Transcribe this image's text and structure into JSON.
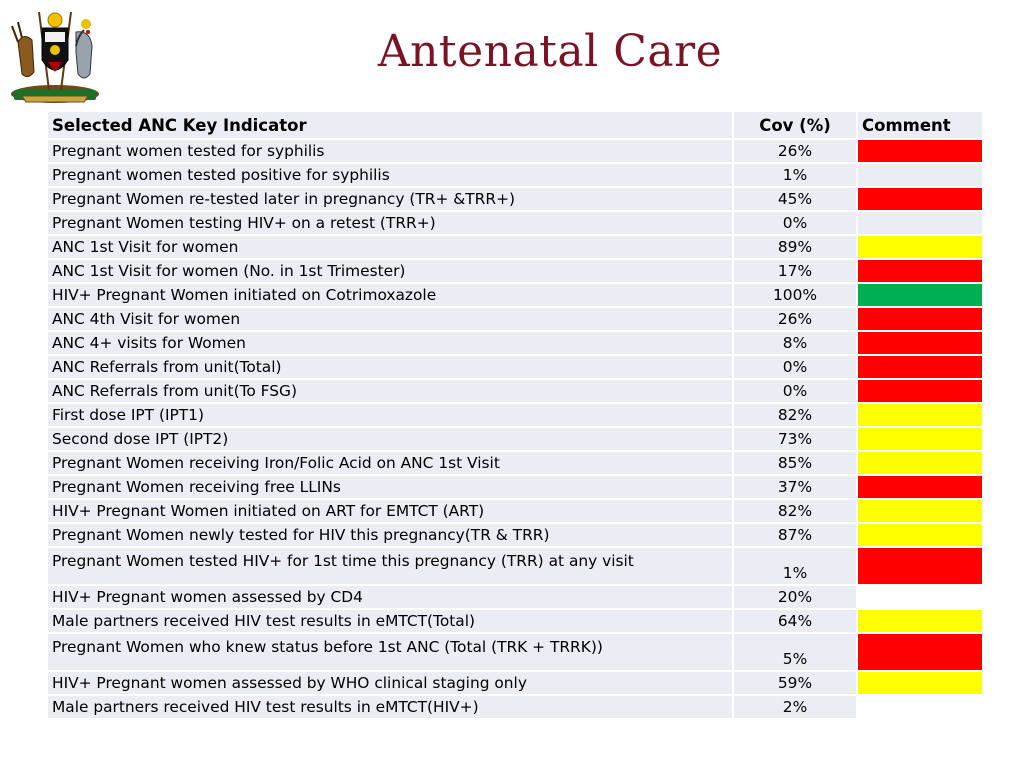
{
  "page": {
    "title": "Antenatal Care"
  },
  "colors": {
    "red": "#ff0000",
    "yellow": "#ffff00",
    "green": "#00b050",
    "none": "#eaedf4",
    "blank": "#ffffff"
  },
  "table": {
    "headers": {
      "indicator": "Selected ANC Key Indicator",
      "coverage": "Cov (%)",
      "comment": "Comment"
    },
    "rows": [
      {
        "indicator": "Pregnant women tested for syphilis",
        "coverage": "26%",
        "status": "red"
      },
      {
        "indicator": "Pregnant women tested positive for syphilis",
        "coverage": "1%",
        "status": "none"
      },
      {
        "indicator": "Pregnant Women re-tested later in pregnancy (TR+ &TRR+)",
        "coverage": "45%",
        "status": "red"
      },
      {
        "indicator": "Pregnant Women testing HIV+ on a retest (TRR+)",
        "coverage": "0%",
        "status": "none"
      },
      {
        "indicator": "ANC 1st Visit for women",
        "coverage": "89%",
        "status": "yellow"
      },
      {
        "indicator": "ANC 1st Visit for women (No. in 1st Trimester)",
        "coverage": "17%",
        "status": "red"
      },
      {
        "indicator": "HIV+ Pregnant Women initiated on Cotrimoxazole",
        "coverage": "100%",
        "status": "green"
      },
      {
        "indicator": "ANC 4th Visit for women",
        "coverage": "26%",
        "status": "red"
      },
      {
        "indicator": "ANC 4+ visits for Women",
        "coverage": "8%",
        "status": "red"
      },
      {
        "indicator": "ANC Referrals from unit(Total)",
        "coverage": "0%",
        "status": "red"
      },
      {
        "indicator": "ANC Referrals from unit(To FSG)",
        "coverage": "0%",
        "status": "red"
      },
      {
        "indicator": "First dose IPT (IPT1)",
        "coverage": "82%",
        "status": "yellow"
      },
      {
        "indicator": "Second dose IPT (IPT2)",
        "coverage": "73%",
        "status": "yellow"
      },
      {
        "indicator": "Pregnant Women receiving Iron/Folic Acid on ANC 1st Visit",
        "coverage": "85%",
        "status": "yellow"
      },
      {
        "indicator": "Pregnant Women receiving free LLINs",
        "coverage": "37%",
        "status": "red"
      },
      {
        "indicator": "HIV+ Pregnant Women initiated on ART for EMTCT (ART)",
        "coverage": "82%",
        "status": "yellow"
      },
      {
        "indicator": "Pregnant Women newly tested for HIV this pregnancy(TR & TRR)",
        "coverage": "87%",
        "status": "yellow"
      },
      {
        "indicator": "Pregnant Women tested HIV+ for 1st time this pregnancy (TRR) at any visit",
        "coverage": "1%",
        "status": "red",
        "tall": true
      },
      {
        "indicator": "HIV+ Pregnant women assessed by CD4",
        "coverage": "20%",
        "status": "blank"
      },
      {
        "indicator": "Male partners received HIV test results in eMTCT(Total)",
        "coverage": "64%",
        "status": "yellow"
      },
      {
        "indicator": "Pregnant Women who knew status before 1st ANC (Total (TRK + TRRK))",
        "coverage": "5%",
        "status": "red",
        "tall": true
      },
      {
        "indicator": "HIV+ Pregnant women assessed by WHO clinical staging only",
        "coverage": "59%",
        "status": "yellow"
      },
      {
        "indicator": "Male partners received HIV test results in eMTCT(HIV+)",
        "coverage": "2%",
        "status": "blank"
      }
    ]
  }
}
